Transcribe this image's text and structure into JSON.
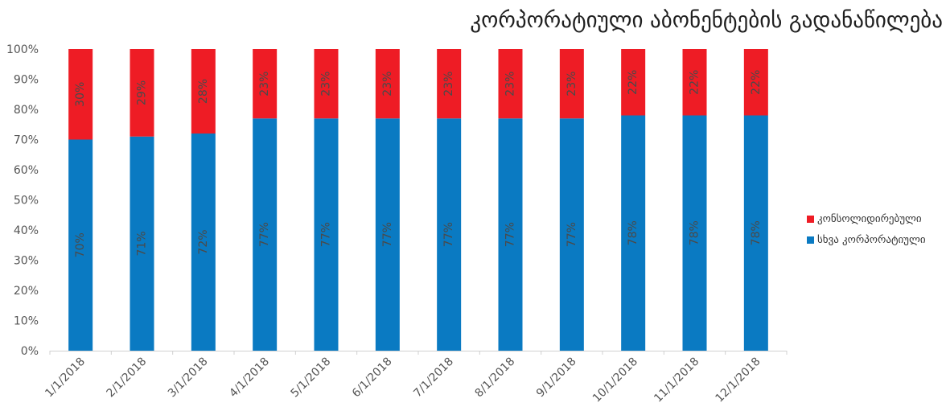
{
  "chart_data": {
    "type": "bar",
    "stacked": true,
    "percent_stacked": true,
    "title": "კორპორატიული აბონენტების გადანაწილება",
    "categories": [
      "1/1/2018",
      "2/1/2018",
      "3/1/2018",
      "4/1/2018",
      "5/1/2018",
      "6/1/2018",
      "7/1/2018",
      "8/1/2018",
      "9/1/2018",
      "10/1/2018",
      "11/1/2018",
      "12/1/2018"
    ],
    "y_ticks": [
      "0%",
      "10%",
      "20%",
      "30%",
      "40%",
      "50%",
      "60%",
      "70%",
      "80%",
      "90%",
      "100%"
    ],
    "ylim": [
      0,
      100
    ],
    "grid": false,
    "legend_position": "right",
    "series": [
      {
        "name": "სხვა კორპორატიული",
        "color": "#0a7ac2",
        "values": [
          70,
          71,
          72,
          77,
          77,
          77,
          77,
          77,
          77,
          78,
          78,
          78
        ],
        "labels": [
          "70%",
          "71%",
          "72%",
          "77%",
          "77%",
          "77%",
          "77%",
          "77%",
          "77%",
          "78%",
          "78%",
          "78%"
        ]
      },
      {
        "name": "კონსოლიდირებული",
        "color": "#ee1c25",
        "values": [
          30,
          29,
          28,
          23,
          23,
          23,
          23,
          23,
          23,
          22,
          22,
          22
        ],
        "labels": [
          "30%",
          "29%",
          "28%",
          "23%",
          "23%",
          "23%",
          "23%",
          "23%",
          "23%",
          "22%",
          "22%",
          "22%"
        ]
      }
    ],
    "legend_order": [
      1,
      0
    ]
  }
}
